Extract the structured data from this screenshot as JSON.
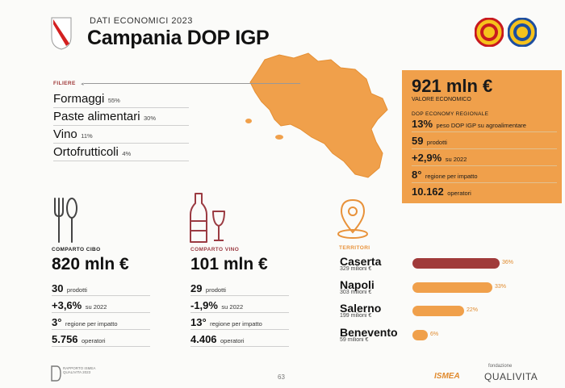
{
  "header": {
    "kicker": "DATI ECONOMICI 2023",
    "title": "Campania DOP IGP"
  },
  "filiere": {
    "label": "FILIERE",
    "items": [
      {
        "name": "Formaggi",
        "pct": "55%"
      },
      {
        "name": "Paste alimentari",
        "pct": "30%"
      },
      {
        "name": "Vino",
        "pct": "11%"
      },
      {
        "name": "Ortofrutticoli",
        "pct": "4%"
      }
    ]
  },
  "regional": {
    "value": "921 mln €",
    "value_label": "VALORE ECONOMICO",
    "section_label": "DOP ECONOMY REGIONALE",
    "stats": [
      {
        "val": "13%",
        "lbl": "peso DOP IGP su agroalimentare"
      },
      {
        "val": "59",
        "lbl": "prodotti"
      },
      {
        "val": "+2,9%",
        "lbl": "su 2022"
      },
      {
        "val": "8°",
        "lbl": "regione per impatto"
      },
      {
        "val": "10.162",
        "lbl": "operatori"
      }
    ]
  },
  "cibo": {
    "label": "COMPARTO CIBO",
    "value": "820 mln €",
    "stats": [
      {
        "val": "30",
        "lbl": "prodotti"
      },
      {
        "val": "+3,6%",
        "lbl": "su 2022"
      },
      {
        "val": "3°",
        "lbl": "regione per impatto"
      },
      {
        "val": "5.756",
        "lbl": "operatori"
      }
    ]
  },
  "vino": {
    "label": "COMPARTO VINO",
    "value": "101 mln €",
    "stats": [
      {
        "val": "29",
        "lbl": "prodotti"
      },
      {
        "val": "-1,9%",
        "lbl": "su 2022"
      },
      {
        "val": "13°",
        "lbl": "regione per impatto"
      },
      {
        "val": "4.406",
        "lbl": "operatori"
      }
    ]
  },
  "territori": {
    "label": "TERRITORI",
    "items": [
      {
        "name": "Caserta",
        "sub": "329 milioni €",
        "pct": "36%",
        "share": 36,
        "color": "#a03a3a"
      },
      {
        "name": "Napoli",
        "sub": "303 milioni €",
        "pct": "33%",
        "share": 33,
        "color": "#f0a04b"
      },
      {
        "name": "Salerno",
        "sub": "199 milioni €",
        "pct": "22%",
        "share": 22,
        "color": "#f0a04b"
      },
      {
        "name": "Benevento",
        "sub": "59 milioni €",
        "pct": "6%",
        "share": 6,
        "color": "#f0a04b"
      }
    ]
  },
  "footer": {
    "page_number": "63",
    "rapporto_text": "RAPPORTO ISMEA QUALIVITA 2023",
    "ismea_logo": "ISMEA",
    "qualivita_small": "fondazione",
    "qualivita_logo": "QUALIVITA"
  },
  "colors": {
    "accent_orange": "#f0a04b",
    "accent_red": "#a03a3a",
    "icon_orange": "#e8923a",
    "icon_wine": "#9b3b42"
  }
}
